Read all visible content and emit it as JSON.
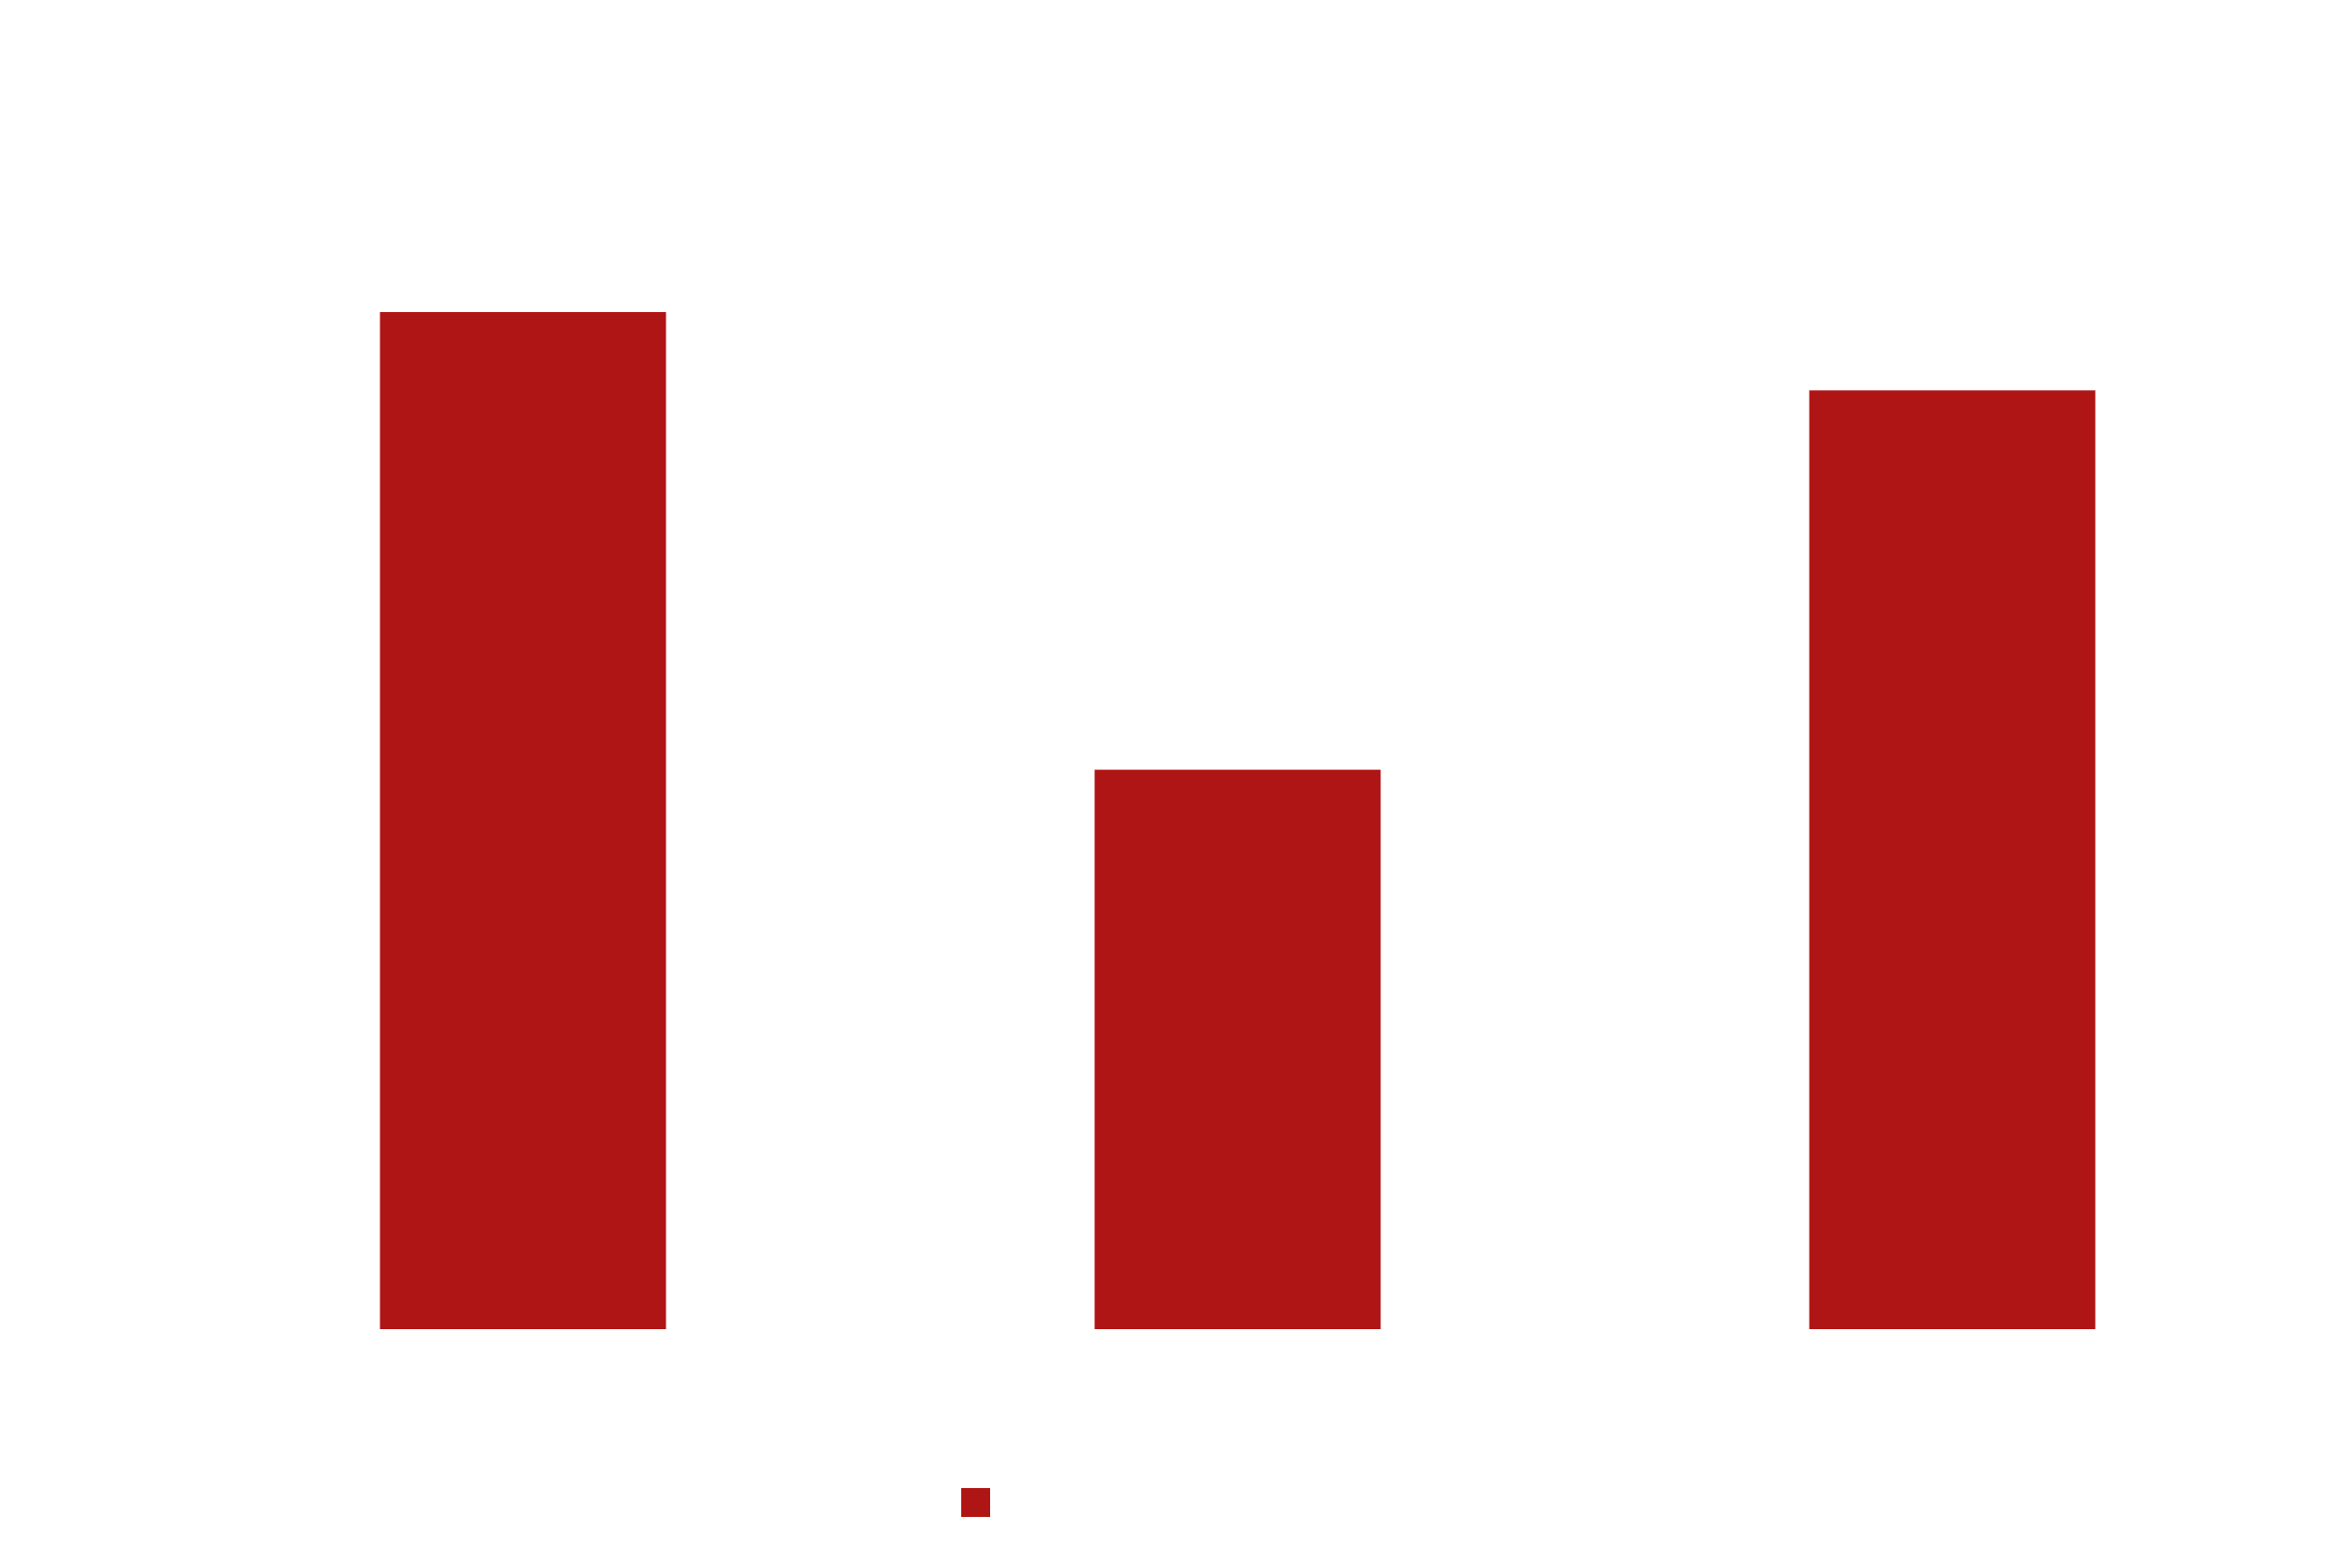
{
  "chart_data": {
    "type": "bar",
    "categories": [
      "",
      "",
      ""
    ],
    "series": [
      {
        "values": [
          100,
          55,
          92.3
        ]
      }
    ],
    "title": "",
    "xlabel": "",
    "ylabel": "",
    "ylim": [
      0,
      100
    ],
    "grid": false,
    "legend": {
      "placement": "bottom-center"
    },
    "colors": {
      "bar": "#b01515",
      "background": "#ffffff"
    }
  }
}
